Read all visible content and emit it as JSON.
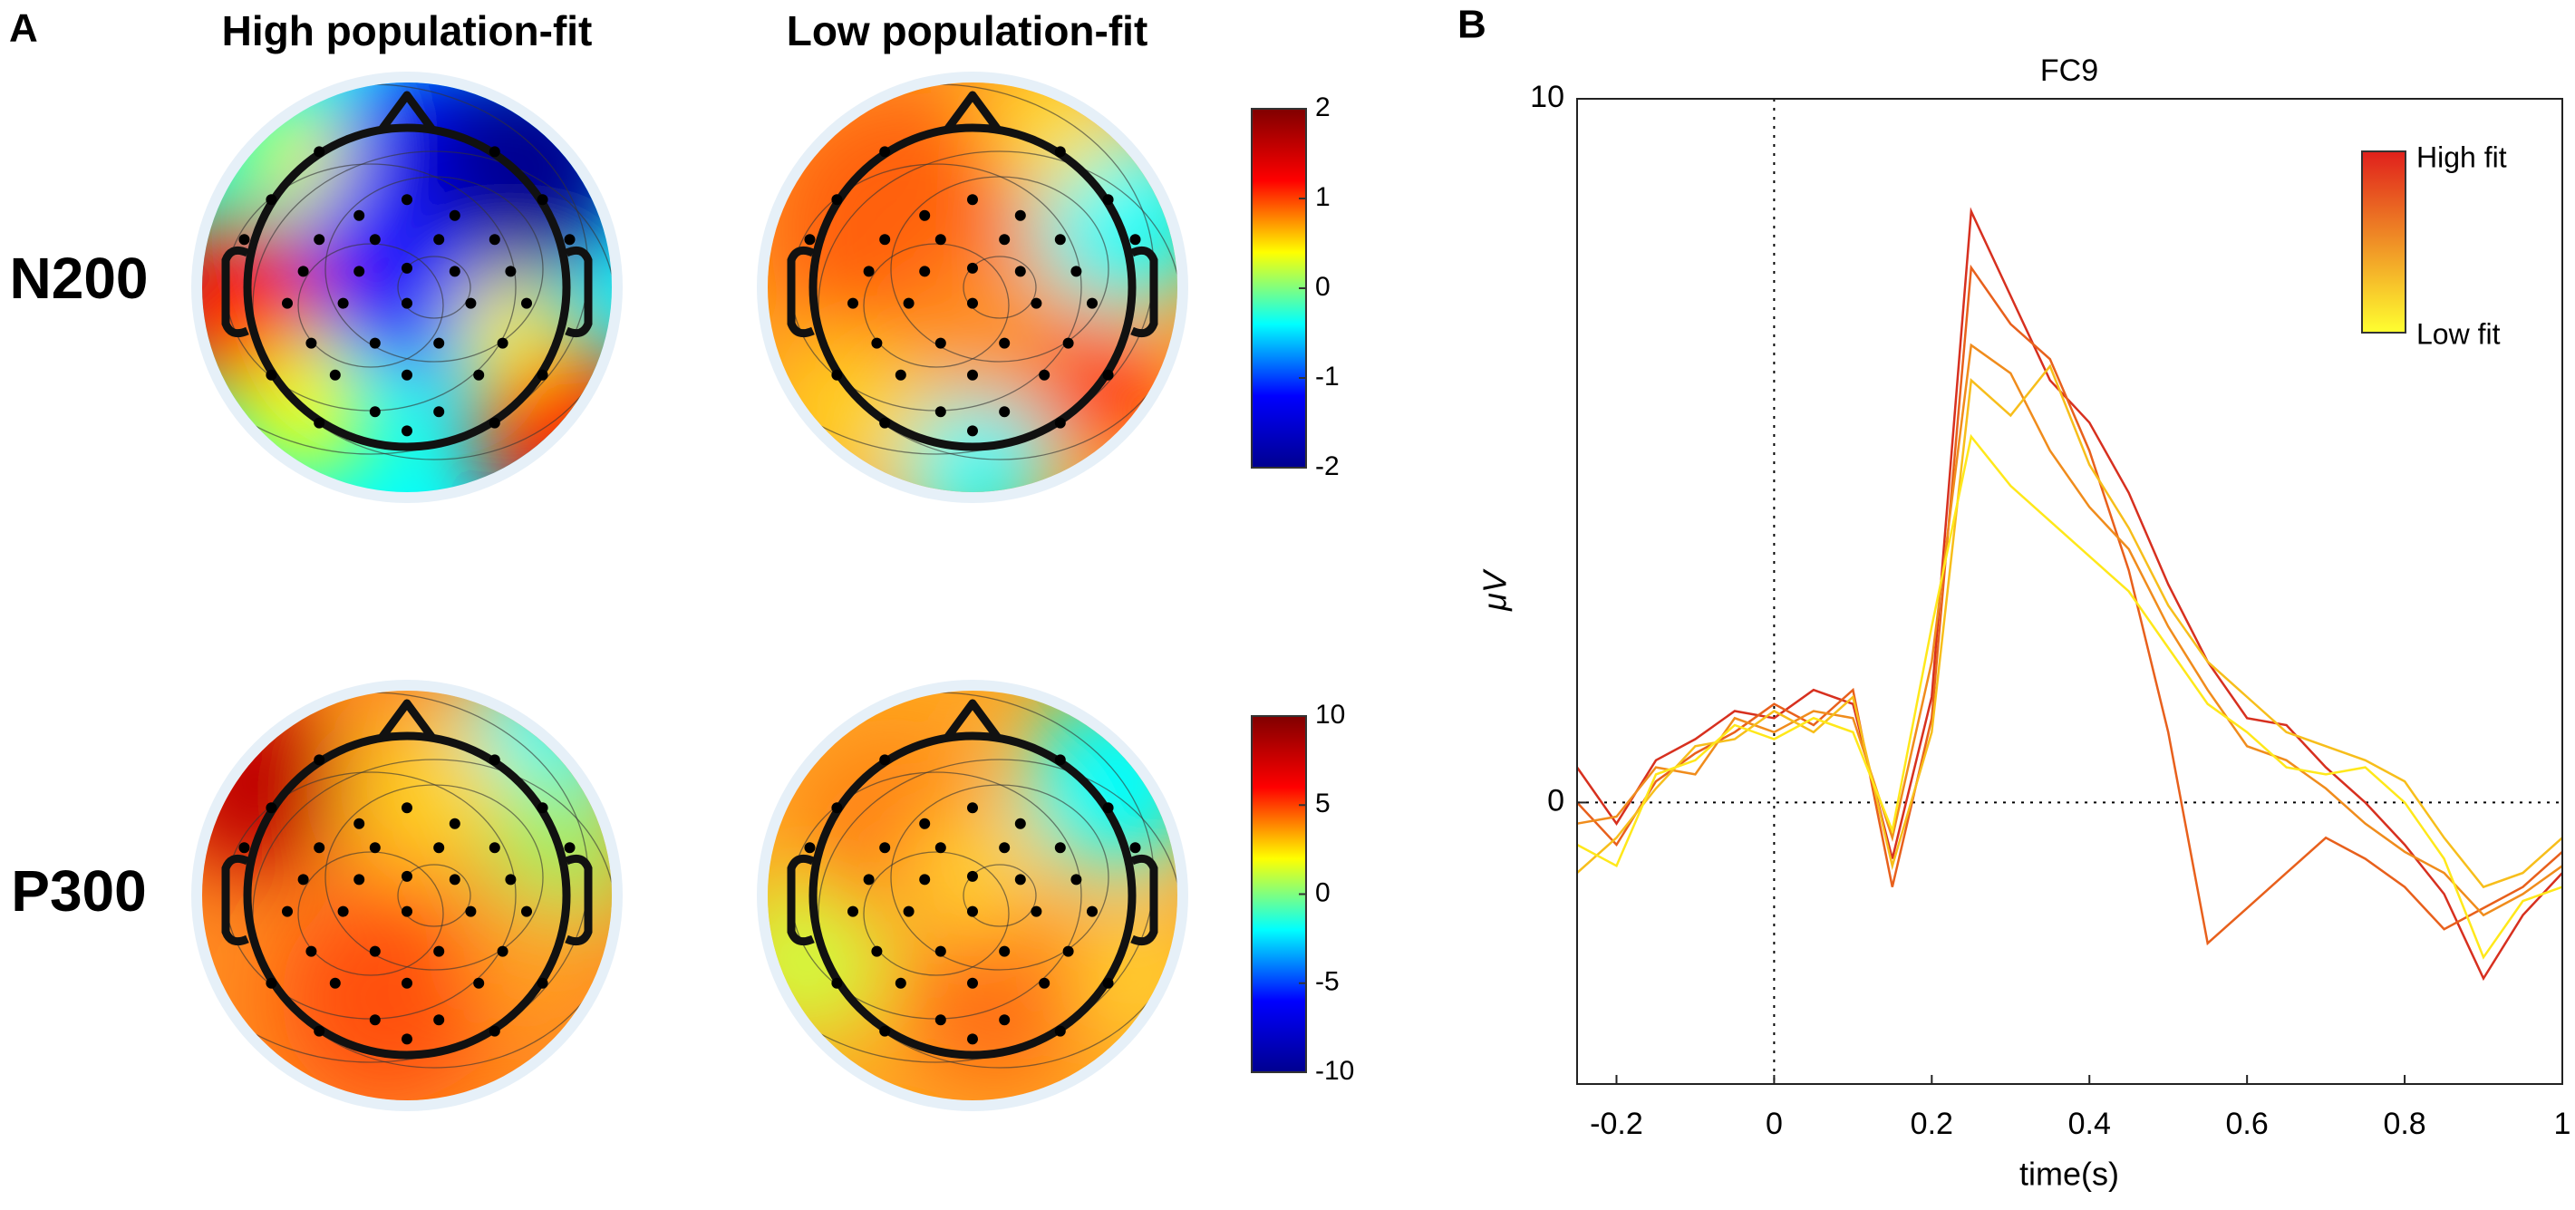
{
  "panels": {
    "a_label": "A",
    "b_label": "B"
  },
  "topomaps": {
    "columns": [
      "High population-fit",
      "Low population-fit"
    ],
    "rows": [
      "N200",
      "P300"
    ],
    "colormap": [
      "#00008f",
      "#0000ff",
      "#00ffff",
      "#ffff00",
      "#ff0000",
      "#800000"
    ],
    "colorbars": [
      {
        "clim": [
          -2,
          2
        ],
        "ticks": [
          2,
          1,
          0,
          -1,
          -2
        ]
      },
      {
        "clim": [
          -10,
          10
        ],
        "ticks": [
          10,
          5,
          0,
          -5,
          -10
        ]
      }
    ]
  },
  "chart_data": {
    "type": "line",
    "title": "FC9",
    "xlabel": "time(s)",
    "ylabel": "μV",
    "x": [
      -0.25,
      -0.2,
      -0.15,
      -0.1,
      -0.05,
      0,
      0.05,
      0.1,
      0.15,
      0.2,
      0.25,
      0.3,
      0.35,
      0.4,
      0.45,
      0.5,
      0.55,
      0.6,
      0.65,
      0.7,
      0.75,
      0.8,
      0.85,
      0.9,
      0.95,
      1
    ],
    "series": [
      {
        "color": "#d7301f",
        "values": [
          0.5,
          -0.3,
          0.6,
          0.9,
          1.3,
          1.2,
          1.6,
          1.4,
          -0.8,
          1.5,
          8.4,
          7.2,
          6.0,
          5.4,
          4.4,
          3.1,
          2.0,
          1.2,
          1.1,
          0.5,
          0,
          -0.6,
          -1.3,
          -2.5,
          -1.6,
          -1.0
        ]
      },
      {
        "color": "#e8601c",
        "values": [
          0,
          -0.6,
          0.3,
          0.7,
          1.0,
          1.4,
          1.1,
          1.6,
          -1.2,
          1.2,
          7.6,
          6.8,
          6.3,
          5.0,
          3.3,
          1.0,
          -2.0,
          -1.5,
          -1.0,
          -0.5,
          -0.8,
          -1.2,
          -1.8,
          -1.5,
          -1.2,
          -0.7
        ]
      },
      {
        "color": "#f08c1c",
        "values": [
          -0.3,
          -0.2,
          0.5,
          0.4,
          1.2,
          1.0,
          1.3,
          1.2,
          -0.5,
          2.0,
          6.5,
          6.1,
          5.0,
          4.2,
          3.6,
          2.5,
          1.6,
          0.8,
          0.6,
          0.2,
          -0.3,
          -0.7,
          -1.0,
          -1.6,
          -1.3,
          -0.9
        ]
      },
      {
        "color": "#f7be1b",
        "values": [
          -1.0,
          -0.5,
          0.2,
          0.8,
          0.9,
          1.3,
          1.0,
          1.5,
          -0.9,
          1.0,
          6.0,
          5.5,
          6.2,
          4.8,
          3.9,
          2.8,
          2.0,
          1.5,
          1.0,
          0.8,
          0.6,
          0.3,
          -0.5,
          -1.2,
          -1.0,
          -0.5
        ]
      },
      {
        "color": "#ffe81a",
        "values": [
          -0.6,
          -0.9,
          0.4,
          0.6,
          1.1,
          0.9,
          1.2,
          1.0,
          -0.4,
          2.5,
          5.2,
          4.5,
          4.0,
          3.5,
          3.0,
          2.2,
          1.4,
          1.0,
          0.5,
          0.4,
          0.5,
          0,
          -0.8,
          -2.2,
          -1.4,
          -1.2
        ]
      }
    ],
    "xlim": [
      -0.25,
      1
    ],
    "ylim": [
      -4,
      10
    ],
    "xticks": [
      -0.2,
      0,
      0.2,
      0.4,
      0.6,
      0.8,
      1
    ],
    "yticks": [
      0,
      10
    ],
    "zero_lines": true,
    "legend": {
      "labels": [
        "High fit",
        "Low fit"
      ],
      "colors": [
        "#e0201c",
        "#ffff30"
      ],
      "loc": "upper right"
    }
  }
}
